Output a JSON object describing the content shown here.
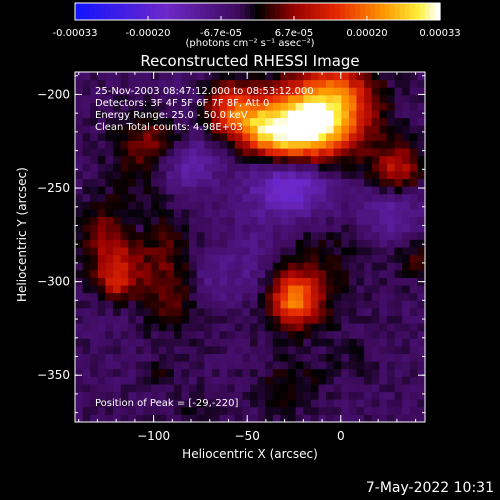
{
  "chart_data": {
    "type": "heatmap",
    "title": "Reconstructed RHESSI Image",
    "xlabel": "Heliocentric X (arcsec)",
    "ylabel": "Heliocentric Y (arcsec)",
    "xlim": [
      -142,
      45
    ],
    "ylim": [
      -375,
      -188
    ],
    "xticks": [
      -100,
      -50,
      0
    ],
    "yticks": [
      -200,
      -250,
      -300,
      -350
    ],
    "colorbar": {
      "ticks": [
        "-0.00033",
        "-0.00020",
        "-6.7e-05",
        "6.7e-05",
        "0.00020",
        "0.00033"
      ],
      "range": [
        -0.00033,
        0.00033
      ],
      "unit_label": "(photons cm⁻² s⁻¹ asec⁻²)"
    },
    "annotations": [
      "25-Nov-2003 08:47:12.000 to 08:53:12.000",
      "Detectors: 3F 4F 5F 6F 7F 8F, Att 0",
      "Energy Range: 25.0 - 50.0 keV",
      "Clean    Total counts: 4.98E+03"
    ],
    "peak_label": "Position of Peak = [-29,-220]",
    "peak": [
      -29,
      -220
    ]
  },
  "footer": {
    "timestamp": "7-May-2022 10:31"
  }
}
